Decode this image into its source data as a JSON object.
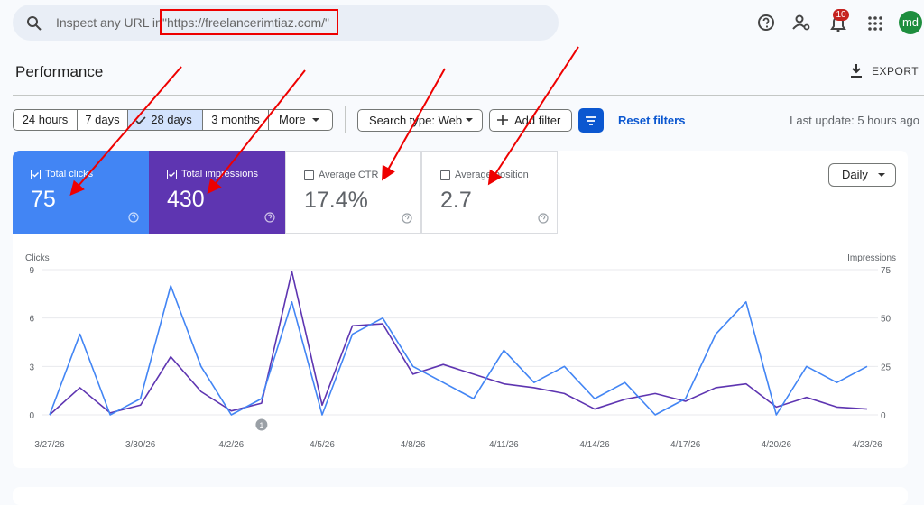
{
  "search": {
    "prefix": "Inspect any URL in",
    "property": "\"https://freelancerimtiaz.com/\""
  },
  "notification_count": "10",
  "avatar": "md",
  "header": {
    "title": "Performance",
    "export": "EXPORT"
  },
  "date_ranges": [
    "24 hours",
    "7 days",
    "28 days",
    "3 months"
  ],
  "selected_range": 2,
  "more": "More",
  "filters": {
    "search_type": "Search type: Web",
    "add_filter": "Add filter",
    "reset": "Reset filters"
  },
  "last_update": "Last update: 5 hours ago",
  "metrics": [
    {
      "label": "Total clicks",
      "value": "75",
      "checked": true,
      "color": "#4285f4"
    },
    {
      "label": "Total impressions",
      "value": "430",
      "checked": true,
      "color": "#5e35b1"
    },
    {
      "label": "Average CTR",
      "value": "17.4%",
      "checked": false,
      "color": "#ffffff"
    },
    {
      "label": "Average position",
      "value": "2.7",
      "checked": false,
      "color": "#ffffff"
    }
  ],
  "granularity": "Daily",
  "chart_data": {
    "type": "line",
    "categories": [
      "3/27/26",
      null,
      null,
      "3/30/26",
      null,
      null,
      "4/2/26",
      null,
      null,
      "4/5/26",
      null,
      null,
      "4/8/26",
      null,
      null,
      "4/11/26",
      null,
      null,
      "4/14/26",
      null,
      null,
      "4/17/26",
      null,
      null,
      "4/20/26",
      null,
      null,
      "4/23/26"
    ],
    "series": [
      {
        "name": "Clicks",
        "color": "#4285f4",
        "values": [
          0,
          5,
          0,
          1,
          8,
          3,
          0,
          1,
          7,
          0,
          5,
          6,
          3,
          2,
          1,
          4,
          2,
          3,
          1,
          2,
          0,
          1,
          5,
          7,
          0,
          3,
          2,
          3
        ]
      },
      {
        "name": "Impressions",
        "color": "#5e35b1",
        "axis": "y2",
        "values": [
          0,
          14,
          1,
          5,
          30,
          12,
          2,
          6,
          74,
          5,
          46,
          47,
          21,
          26,
          21,
          16,
          14,
          11,
          3,
          8,
          11,
          7,
          14,
          16,
          4,
          9,
          4,
          3
        ]
      }
    ],
    "ylim": [
      0,
      9
    ],
    "yticks": [
      0,
      3,
      6,
      9
    ],
    "y2lim": [
      0,
      75
    ],
    "y2ticks": [
      0,
      25,
      50,
      75
    ],
    "grid": true,
    "annotation": "1"
  }
}
